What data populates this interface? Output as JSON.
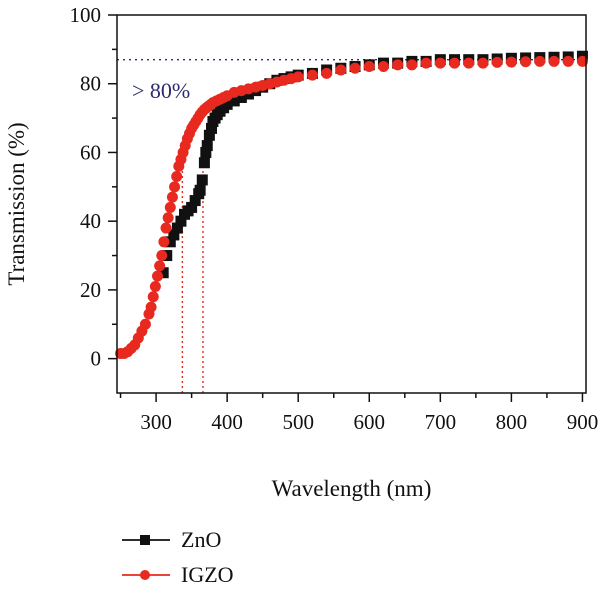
{
  "chart_data": {
    "type": "scatter",
    "xlabel": "Wavelength (nm)",
    "ylabel": "Transmission (%)",
    "xlim": [
      245,
      905
    ],
    "ylim": [
      -10,
      100
    ],
    "x_ticks": [
      300,
      400,
      500,
      600,
      700,
      800,
      900
    ],
    "x_tick_labels": [
      "300",
      "400",
      "500",
      "600",
      "700",
      "800",
      "900"
    ],
    "y_ticks": [
      0,
      20,
      40,
      60,
      80,
      100
    ],
    "y_tick_labels": [
      "0",
      "20",
      "40",
      "60",
      "80",
      "100"
    ],
    "grid": false,
    "legend_position": "bottom-left",
    "annotation": {
      "text": "> 80%",
      "color": "#2b2b6e",
      "hline_y": 87,
      "vlines": [
        {
          "x": 337,
          "color": "#e8291f"
        },
        {
          "x": 366,
          "color": "#e8291f"
        }
      ]
    },
    "series": [
      {
        "name": "ZnO",
        "marker": "square",
        "color": "#111111",
        "x": [
          310,
          315,
          320,
          325,
          330,
          335,
          340,
          345,
          350,
          355,
          360,
          362,
          365,
          368,
          370,
          372,
          375,
          378,
          380,
          383,
          386,
          390,
          395,
          400,
          410,
          420,
          430,
          440,
          450,
          460,
          470,
          480,
          490,
          500,
          520,
          540,
          560,
          580,
          600,
          620,
          640,
          660,
          680,
          700,
          720,
          740,
          760,
          780,
          800,
          820,
          840,
          860,
          880,
          900
        ],
        "y": [
          25,
          30,
          34,
          36,
          38,
          40,
          42,
          43,
          44,
          46,
          48,
          49,
          52,
          57,
          60,
          62,
          65,
          67,
          69,
          70,
          71,
          72,
          73,
          74,
          75,
          76,
          77,
          78,
          79,
          80,
          81,
          81.5,
          82,
          82.5,
          83,
          84,
          84.5,
          85,
          85.5,
          86,
          86,
          86.5,
          86.5,
          87,
          87,
          87,
          87,
          87.2,
          87.4,
          87.5,
          87.6,
          87.7,
          87.8,
          88
        ]
      },
      {
        "name": "IGZO",
        "marker": "circle",
        "color": "#e8291f",
        "x": [
          250,
          255,
          260,
          265,
          270,
          275,
          280,
          285,
          290,
          293,
          296,
          299,
          302,
          305,
          308,
          311,
          314,
          317,
          320,
          323,
          326,
          329,
          332,
          335,
          338,
          341,
          344,
          347,
          350,
          353,
          356,
          359,
          362,
          365,
          368,
          371,
          374,
          377,
          380,
          385,
          390,
          395,
          400,
          410,
          420,
          430,
          440,
          450,
          460,
          470,
          480,
          490,
          500,
          520,
          540,
          560,
          580,
          600,
          620,
          640,
          660,
          680,
          700,
          720,
          740,
          760,
          780,
          800,
          820,
          840,
          860,
          880,
          900
        ],
        "y": [
          1.5,
          1.5,
          2,
          3,
          4,
          6,
          8,
          10,
          13,
          15,
          18,
          21,
          24,
          27,
          30,
          34,
          38,
          41,
          44,
          47,
          50,
          53,
          56,
          58,
          60,
          62,
          64,
          65.5,
          67,
          68,
          69,
          70,
          71,
          71.8,
          72.5,
          73,
          73.5,
          74,
          74.5,
          75,
          75.5,
          76,
          76.5,
          77.5,
          78,
          78.5,
          79,
          79.5,
          80,
          80.5,
          81,
          81.5,
          82,
          82.5,
          83,
          84,
          84.5,
          85,
          85,
          85.5,
          85.5,
          86,
          86,
          86,
          86,
          86,
          86.2,
          86.3,
          86.4,
          86.5,
          86.5,
          86.5,
          86.5
        ]
      }
    ]
  }
}
